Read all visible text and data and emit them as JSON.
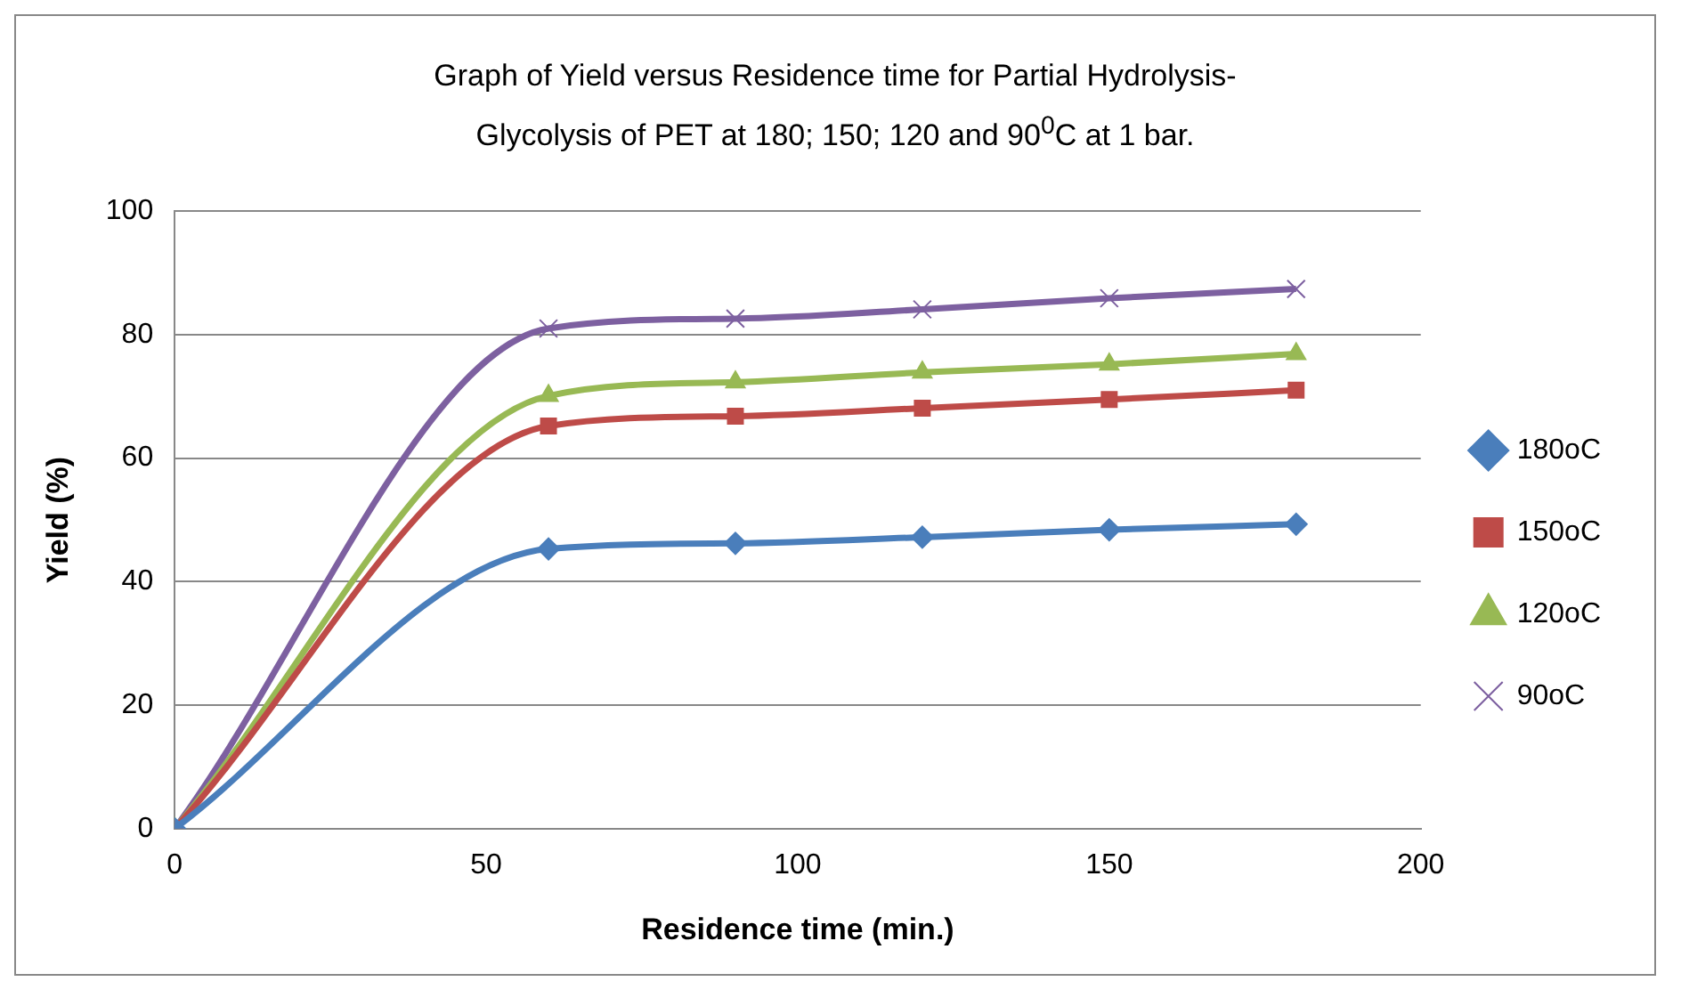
{
  "chart_data": {
    "type": "line",
    "title": "Graph of Yield versus Residence time for Partial Hydrolysis-Glycolysis of PET at 180; 150; 120 and 90$^{0}$C at 1 bar.",
    "xlabel": "Residence time (min.)",
    "ylabel": "Yield (%)",
    "x": [
      0,
      60,
      90,
      120,
      150,
      180
    ],
    "xlim": [
      0,
      200
    ],
    "xticks": [
      0,
      50,
      100,
      150,
      200
    ],
    "ylim": [
      0,
      100
    ],
    "yticks": [
      0,
      20,
      40,
      60,
      80,
      100
    ],
    "grid": "y",
    "legend": "right",
    "series": [
      {
        "name": "180oC",
        "color": "#4a7ebb",
        "marker": "diamond",
        "values": [
          0,
          45.3,
          46.2,
          47.2,
          48.4,
          49.3
        ]
      },
      {
        "name": "150oC",
        "color": "#be4b48",
        "marker": "square",
        "values": [
          0,
          65.2,
          66.8,
          68.1,
          69.5,
          71.0
        ]
      },
      {
        "name": "120oC",
        "color": "#98b954",
        "marker": "triangle",
        "values": [
          0,
          70.1,
          72.3,
          73.9,
          75.2,
          76.9
        ]
      },
      {
        "name": "90oC",
        "color": "#7d60a0",
        "marker": "cross",
        "values": [
          0,
          81.0,
          82.6,
          84.1,
          85.9,
          87.4
        ]
      }
    ]
  }
}
